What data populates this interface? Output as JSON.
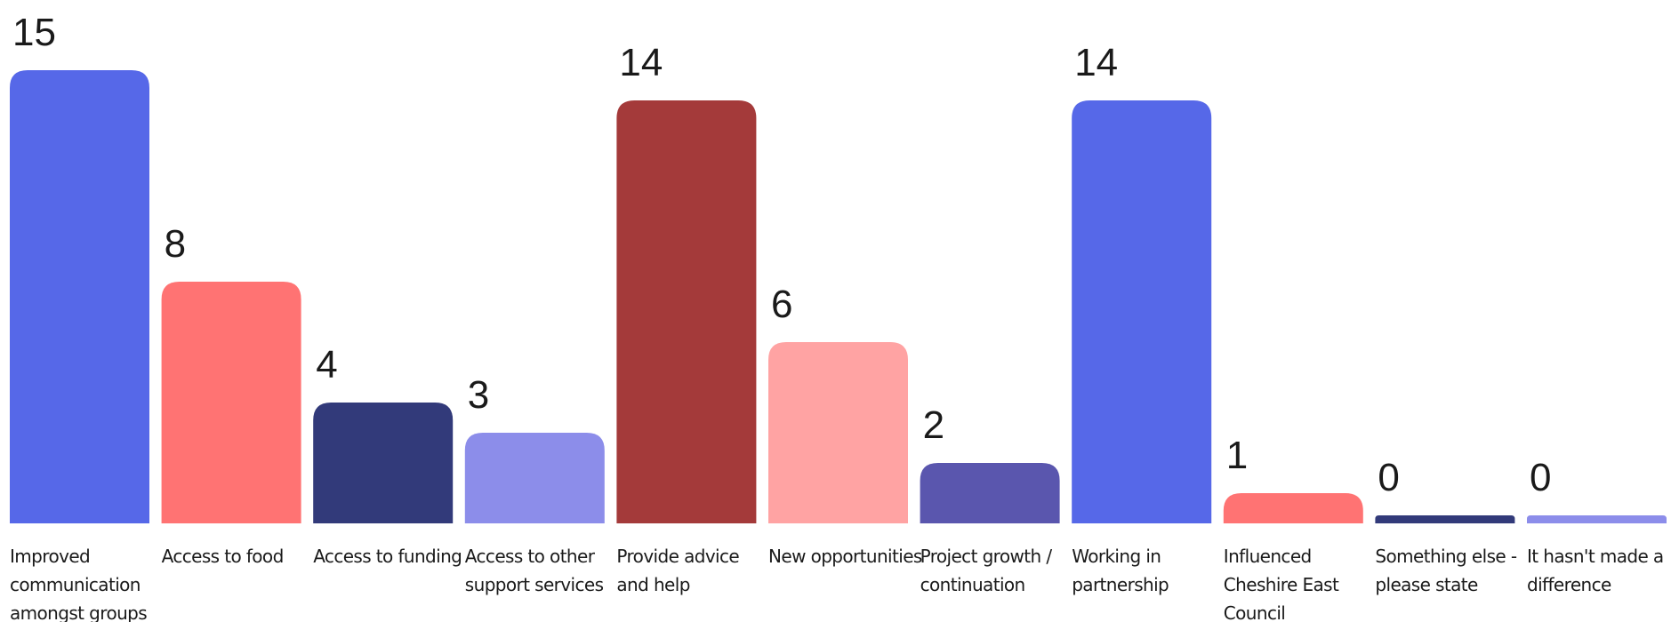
{
  "chart_data": {
    "type": "bar",
    "title": "",
    "xlabel": "",
    "ylabel": "",
    "ylim": [
      0,
      15
    ],
    "grid": false,
    "legend": "none",
    "categories": [
      "Improved communication amongst groups",
      "Access to food",
      "Access to funding",
      "Access to other support services",
      "Provide advice and help",
      "New opportunities",
      "Project growth / continuation",
      "Working in partnership",
      "Influenced Cheshire East Council",
      "Something else - please state",
      "It hasn't made a difference"
    ],
    "category_lines": [
      [
        "Improved",
        "communication",
        "amongst groups"
      ],
      [
        "Access to food"
      ],
      [
        "Access to funding"
      ],
      [
        "Access to other",
        "support services"
      ],
      [
        "Provide advice",
        "and help"
      ],
      [
        "New opportunities"
      ],
      [
        "Project growth /",
        "continuation"
      ],
      [
        "Working in",
        "partnership"
      ],
      [
        "Influenced",
        "Cheshire East",
        "Council"
      ],
      [
        "Something else -",
        "please state"
      ],
      [
        "It hasn't made a",
        "difference"
      ]
    ],
    "values": [
      15,
      8,
      4,
      3,
      14,
      6,
      2,
      14,
      1,
      0,
      0
    ],
    "colors": [
      "#5668E8",
      "#FF7373",
      "#323A7A",
      "#8C8DEA",
      "#A43A3A",
      "#FFA3A3",
      "#5A56AE",
      "#5668E8",
      "#FF7373",
      "#323A7A",
      "#8C8DEA"
    ]
  }
}
